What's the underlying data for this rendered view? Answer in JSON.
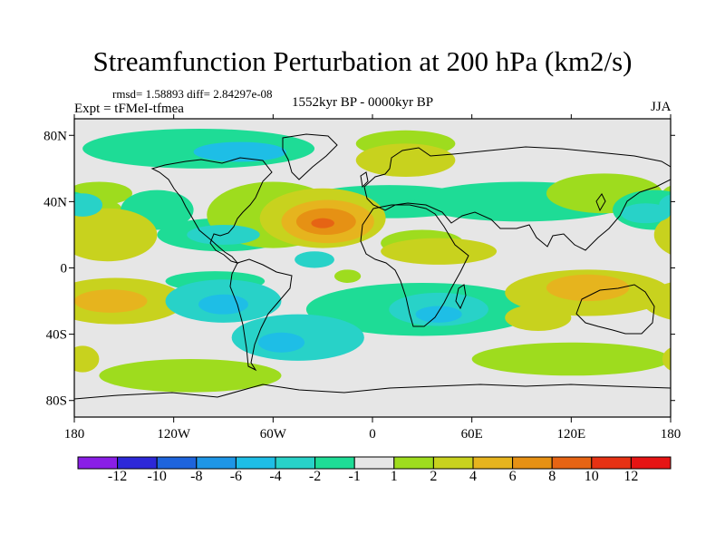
{
  "title": "Streamfunction Perturbation at 200 hPa (km2/s)",
  "stats_line": "rmsd= 1.58893 diff= 2.84297e-08",
  "experiment": "Expt = tFMeI-tfmea",
  "period": "1552kyr BP - 0000kyr BP",
  "season": "JJA",
  "chart_data": {
    "type": "filled-contour-map",
    "projection": "cylindrical equidistant",
    "lon_range": [
      -180,
      180
    ],
    "lat_range": [
      -90,
      90
    ],
    "x_ticks": [
      {
        "value": -180,
        "label": "180"
      },
      {
        "value": -120,
        "label": "120W"
      },
      {
        "value": -60,
        "label": "60W"
      },
      {
        "value": 0,
        "label": "0"
      },
      {
        "value": 60,
        "label": "60E"
      },
      {
        "value": 120,
        "label": "120E"
      },
      {
        "value": 180,
        "label": "180"
      }
    ],
    "y_ticks": [
      {
        "value": 80,
        "label": "80N"
      },
      {
        "value": 40,
        "label": "40N"
      },
      {
        "value": 0,
        "label": "0"
      },
      {
        "value": -40,
        "label": "40S"
      },
      {
        "value": -80,
        "label": "80S"
      }
    ],
    "colorbar": {
      "levels": [
        "-12",
        "-10",
        "-8",
        "-6",
        "-4",
        "-2",
        "-1",
        "1",
        "2",
        "4",
        "6",
        "8",
        "10",
        "12"
      ],
      "colors": [
        "#8a1ee6",
        "#2d28d8",
        "#1e64dc",
        "#1e96e6",
        "#1ebee6",
        "#28d2c8",
        "#1edc96",
        "#e6e6e6",
        "#9edc1e",
        "#c8d21e",
        "#e6b41e",
        "#e69114",
        "#e66414",
        "#e63214",
        "#e61414"
      ]
    },
    "anomalies": [
      {
        "lon": -160,
        "lat": 20,
        "rx": 30,
        "ry": 16,
        "level": 2
      },
      {
        "lon": -170,
        "lat": 33,
        "rx": 20,
        "ry": 10,
        "level": 1
      },
      {
        "lon": -165,
        "lat": 45,
        "rx": 20,
        "ry": 7,
        "level": 1
      },
      {
        "lon": -155,
        "lat": -20,
        "rx": 42,
        "ry": 14,
        "level": 2
      },
      {
        "lon": -158,
        "lat": -20,
        "rx": 22,
        "ry": 7,
        "level": 3
      },
      {
        "lon": -175,
        "lat": -55,
        "rx": 10,
        "ry": 8,
        "level": 2
      },
      {
        "lon": -130,
        "lat": 35,
        "rx": 22,
        "ry": 12,
        "level": -1
      },
      {
        "lon": -175,
        "lat": 38,
        "rx": 12,
        "ry": 7,
        "level": -2
      },
      {
        "lon": -105,
        "lat": 72,
        "rx": 70,
        "ry": 12,
        "level": -1
      },
      {
        "lon": -80,
        "lat": 70,
        "rx": 28,
        "ry": 6,
        "level": -3
      },
      {
        "lon": -90,
        "lat": 20,
        "rx": 40,
        "ry": 10,
        "level": -1
      },
      {
        "lon": -90,
        "lat": 20,
        "rx": 22,
        "ry": 6,
        "level": -2
      },
      {
        "lon": -95,
        "lat": -8,
        "rx": 30,
        "ry": 6,
        "level": -1
      },
      {
        "lon": -90,
        "lat": -20,
        "rx": 35,
        "ry": 13,
        "level": -2
      },
      {
        "lon": -90,
        "lat": -22,
        "rx": 15,
        "ry": 6,
        "level": -3
      },
      {
        "lon": -45,
        "lat": -42,
        "rx": 40,
        "ry": 14,
        "level": -2
      },
      {
        "lon": -55,
        "lat": -45,
        "rx": 14,
        "ry": 6,
        "level": -3
      },
      {
        "lon": -110,
        "lat": -65,
        "rx": 55,
        "ry": 10,
        "level": 1
      },
      {
        "lon": -60,
        "lat": 32,
        "rx": 40,
        "ry": 20,
        "level": 1
      },
      {
        "lon": -30,
        "lat": 30,
        "rx": 38,
        "ry": 18,
        "level": 2
      },
      {
        "lon": -27,
        "lat": 28,
        "rx": 28,
        "ry": 13,
        "level": 3
      },
      {
        "lon": -28,
        "lat": 28,
        "rx": 18,
        "ry": 8,
        "level": 4
      },
      {
        "lon": -30,
        "lat": 27,
        "rx": 7,
        "ry": 3,
        "level": 5
      },
      {
        "lon": -35,
        "lat": 5,
        "rx": 12,
        "ry": 5,
        "level": -2
      },
      {
        "lon": -15,
        "lat": -5,
        "rx": 8,
        "ry": 4,
        "level": 1
      },
      {
        "lon": 20,
        "lat": 75,
        "rx": 30,
        "ry": 8,
        "level": 1
      },
      {
        "lon": 20,
        "lat": 65,
        "rx": 30,
        "ry": 10,
        "level": 2
      },
      {
        "lon": 10,
        "lat": 40,
        "rx": 55,
        "ry": 10,
        "level": -1
      },
      {
        "lon": 90,
        "lat": 40,
        "rx": 65,
        "ry": 12,
        "level": -1
      },
      {
        "lon": 140,
        "lat": 45,
        "rx": 35,
        "ry": 12,
        "level": 1
      },
      {
        "lon": 170,
        "lat": 35,
        "rx": 25,
        "ry": 12,
        "level": -1
      },
      {
        "lon": 165,
        "lat": 33,
        "rx": 15,
        "ry": 6,
        "level": -2
      },
      {
        "lon": 30,
        "lat": 15,
        "rx": 25,
        "ry": 8,
        "level": 1
      },
      {
        "lon": 40,
        "lat": 10,
        "rx": 35,
        "ry": 8,
        "level": 2
      },
      {
        "lon": 30,
        "lat": -25,
        "rx": 70,
        "ry": 16,
        "level": -1
      },
      {
        "lon": 40,
        "lat": -25,
        "rx": 30,
        "ry": 10,
        "level": -2
      },
      {
        "lon": 40,
        "lat": -28,
        "rx": 14,
        "ry": 5,
        "level": -3
      },
      {
        "lon": 130,
        "lat": -15,
        "rx": 50,
        "ry": 14,
        "level": 2
      },
      {
        "lon": 130,
        "lat": -12,
        "rx": 25,
        "ry": 8,
        "level": 3
      },
      {
        "lon": 100,
        "lat": -30,
        "rx": 20,
        "ry": 8,
        "level": 2
      },
      {
        "lon": 120,
        "lat": -55,
        "rx": 60,
        "ry": 10,
        "level": 1
      }
    ]
  }
}
